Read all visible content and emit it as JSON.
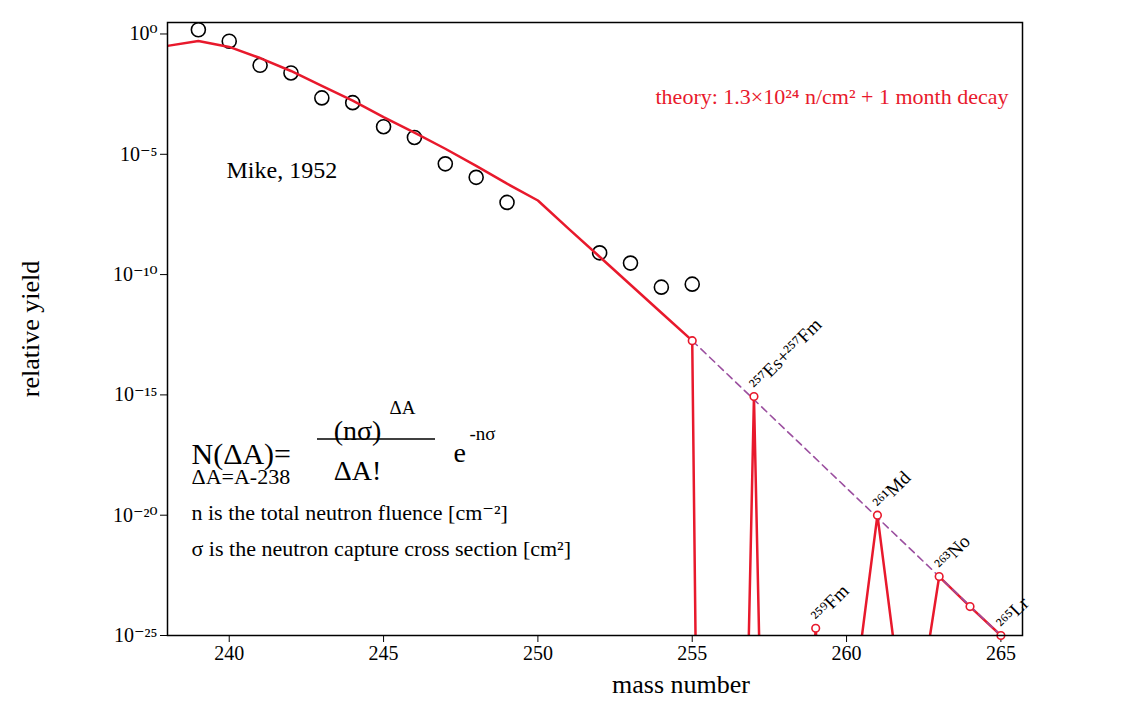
{
  "chart_data": {
    "type": "line",
    "log": "y",
    "grid": false,
    "xlabel": "mass number",
    "ylabel": "relative yield",
    "xlim": [
      238,
      265.7
    ],
    "xticks": [
      240,
      245,
      250,
      255,
      260,
      265
    ],
    "ylim": [
      1e-25,
      3
    ],
    "yticks": [
      {
        "value": 1,
        "label": "10⁰"
      },
      {
        "value": 1e-05,
        "label": "10⁻⁵"
      },
      {
        "value": 1e-10,
        "label": "10⁻¹⁰"
      },
      {
        "value": 1e-15,
        "label": "10⁻¹⁵"
      },
      {
        "value": 1e-20,
        "label": "10⁻²⁰"
      },
      {
        "value": 1e-25,
        "label": "10⁻²⁵"
      }
    ],
    "series": [
      {
        "name": "Mike, 1952",
        "type": "scatter",
        "marker": "circle",
        "color": "#000000",
        "x": [
          239,
          240,
          241,
          242,
          243,
          244,
          245,
          246,
          247,
          248,
          249,
          252,
          253,
          254,
          255
        ],
        "values": [
          1.5,
          0.5,
          0.05,
          0.024,
          0.0022,
          0.0014,
          0.00014,
          5e-05,
          4e-06,
          1.1e-06,
          1e-07,
          8e-10,
          3e-10,
          3e-11,
          4e-11
        ]
      },
      {
        "name": "theory: 1.3×10²⁴ n/cm² + 1 month decay",
        "type": "line",
        "line_style": "solid",
        "color": "#e8192c",
        "x": [
          238,
          239,
          240,
          241,
          242,
          243,
          244,
          245,
          246,
          247,
          248,
          249,
          250,
          251,
          252,
          253,
          254,
          255,
          255.15,
          256.75,
          257,
          257.25,
          258.75,
          259,
          259.25,
          260,
          261,
          262,
          262.1,
          263,
          264,
          265
        ],
        "values": [
          0.32,
          0.51,
          0.29,
          0.1,
          0.029,
          0.007,
          0.0017,
          0.00035,
          8e-05,
          1.7e-05,
          3.3e-06,
          6e-07,
          1.2e-07,
          8e-09,
          5.5e-10,
          3.8e-11,
          2.6e-12,
          1.8e-13,
          1e-30,
          1e-30,
          8.5e-16,
          1e-30,
          1e-30,
          2e-25,
          1e-30,
          1e-30,
          1e-20,
          1e-30,
          1e-30,
          2.8e-23,
          1.6e-24,
          1e-25
        ]
      },
      {
        "type": "line",
        "line_style": "dashed",
        "color": "#9b4f9f",
        "x": [
          255,
          265
        ],
        "values": [
          1.8e-13,
          1e-25
        ]
      },
      {
        "type": "scatter",
        "marker": "circle",
        "color": "#e8192c",
        "x": [
          255,
          257,
          259,
          261,
          263,
          264,
          265
        ],
        "values": [
          1.8e-13,
          8.5e-16,
          2e-25,
          1e-20,
          2.8e-23,
          1.6e-24,
          1e-25
        ],
        "labels": [
          null,
          "²⁵⁷Es+²⁵⁷Fm",
          "²⁵⁹Fm",
          "²⁶¹Md",
          "²⁶³No",
          null,
          "²⁶⁵Lr"
        ]
      }
    ],
    "annotations": {
      "formula": {
        "lhs": "N(ΔA)=",
        "numerator": "(nσ)",
        "numerator_exponent": "ΔA",
        "denominator": "ΔA!",
        "factor": "e",
        "factor_exponent": "-nσ"
      },
      "definitions": [
        "ΔA=A-238",
        "n is the total neutron fluence [cm⁻²]",
        "σ is the neutron capture cross section [cm²]"
      ]
    }
  }
}
